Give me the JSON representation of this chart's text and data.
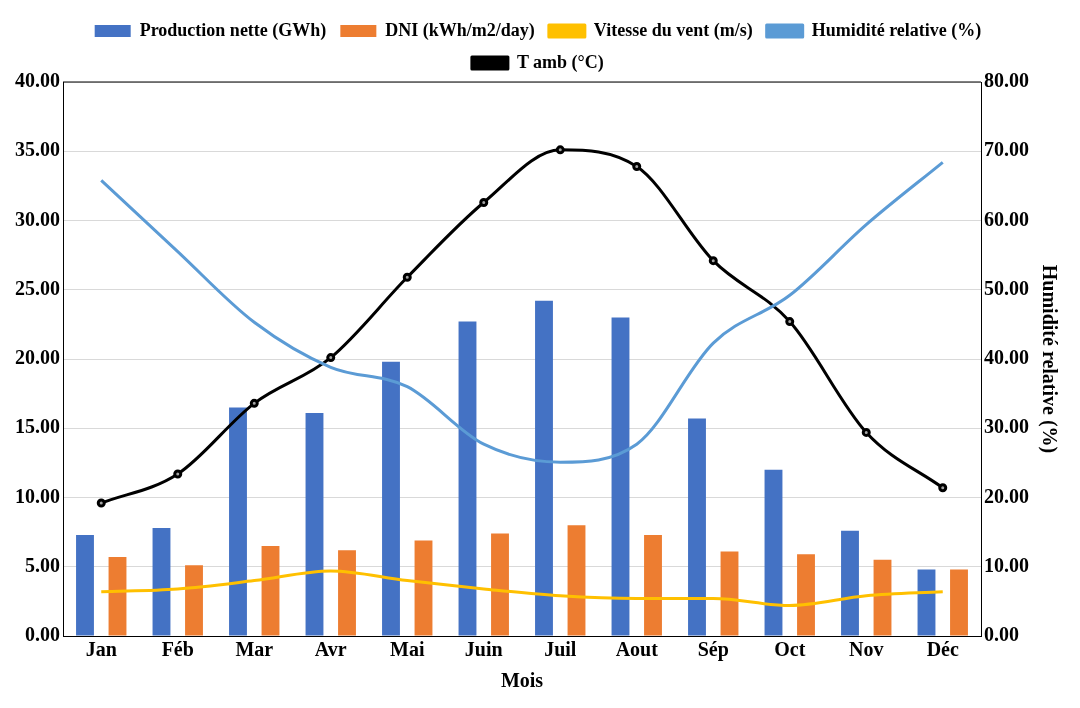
{
  "chart_data": {
    "type": "bar",
    "xlabel": "Mois",
    "y2label": "Humidité relative (%)",
    "categories": [
      "Jan",
      "Féb",
      "Mar",
      "Avr",
      "Mai",
      "Juin",
      "Juil",
      "Aout",
      "Sép",
      "Oct",
      "Nov",
      "Déc"
    ],
    "series": [
      {
        "name": "Production nette (GWh)",
        "color": "#4472c4",
        "values": [
          7.3,
          7.8,
          16.5,
          16.1,
          19.8,
          22.7,
          24.2,
          23.0,
          15.7,
          12.0,
          7.6,
          4.8
        ]
      },
      {
        "name": "DNI (kWh/m2/day)",
        "color": "#ed7d31",
        "values": [
          5.7,
          5.1,
          6.5,
          6.2,
          6.9,
          7.4,
          8.0,
          7.3,
          6.1,
          5.9,
          5.5,
          4.8
        ]
      },
      {
        "name": "Vitesse du vent (m/s)",
        "type": "line",
        "color": "#ffc000",
        "marker": "none",
        "values": [
          3.2,
          3.4,
          4.0,
          4.7,
          4.0,
          3.4,
          2.9,
          2.7,
          2.7,
          2.2,
          2.9,
          3.2
        ]
      },
      {
        "name": "Humidité relative (%)",
        "type": "line",
        "axis": "y2",
        "color": "#5b9bd5",
        "marker": "none",
        "values": [
          65.8,
          55.5,
          45.3,
          38.8,
          36.0,
          27.7,
          25.1,
          27.7,
          42.3,
          49.2,
          59.4,
          68.4
        ]
      },
      {
        "name": "T amb (°C)",
        "type": "line",
        "color": "#000000",
        "marker": "circle",
        "values": [
          9.6,
          11.7,
          16.8,
          20.1,
          25.9,
          31.3,
          35.1,
          33.9,
          27.1,
          22.7,
          14.7,
          10.7
        ]
      }
    ],
    "ylim": [
      0,
      40
    ],
    "yticks": [
      {
        "value": 0,
        "label": "0.00"
      },
      {
        "value": 5,
        "label": "5.00"
      },
      {
        "value": 10,
        "label": "10.00"
      },
      {
        "value": 15,
        "label": "15.00"
      },
      {
        "value": 20,
        "label": "20.00"
      },
      {
        "value": 25,
        "label": "25.00"
      },
      {
        "value": 30,
        "label": "30.00"
      },
      {
        "value": 35,
        "label": "35.00"
      },
      {
        "value": 40,
        "label": "40.00"
      }
    ],
    "y2lim": [
      0,
      80
    ],
    "y2ticks": [
      {
        "value": 0,
        "label": "0.00"
      },
      {
        "value": 10,
        "label": "10.00"
      },
      {
        "value": 20,
        "label": "20.00"
      },
      {
        "value": 30,
        "label": "30.00"
      },
      {
        "value": 40,
        "label": "40.00"
      },
      {
        "value": 50,
        "label": "50.00"
      },
      {
        "value": 60,
        "label": "60.00"
      },
      {
        "value": 70,
        "label": "70.00"
      },
      {
        "value": 80,
        "label": "80.00"
      }
    ],
    "grid": "y",
    "legend": "top"
  }
}
